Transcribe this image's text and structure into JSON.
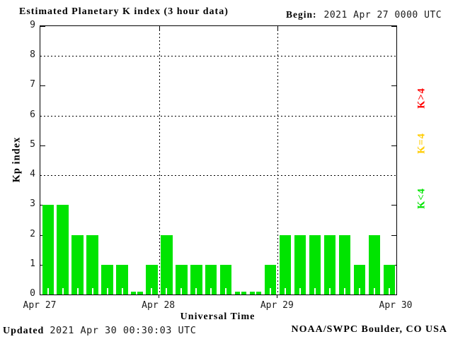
{
  "chart_data": {
    "type": "bar",
    "title": "Estimated Planetary K index (3 hour data)",
    "begin": {
      "label": "Begin:",
      "value": "2021 Apr 27 0000 UTC"
    },
    "xlabel": "Universal Time",
    "ylabel": "Kp index",
    "ylim": [
      0,
      9
    ],
    "yticks": [
      0,
      1,
      2,
      3,
      4,
      5,
      6,
      7,
      8,
      9
    ],
    "grid_y": [
      4,
      6,
      8
    ],
    "categories_days": [
      "Apr 27",
      "Apr 28",
      "Apr 29",
      "Apr 30"
    ],
    "interval_hours": 3,
    "bars_per_day": 8,
    "values": [
      3,
      3,
      2,
      2,
      1,
      1,
      0,
      1,
      2,
      1,
      1,
      1,
      1,
      0,
      0,
      1,
      2,
      2,
      2,
      2,
      2,
      1,
      2,
      1
    ],
    "color_rules": {
      "k_below_4": "#00e400",
      "k_equal_4": "#ffcc00",
      "k_above_4": "#ff0000"
    },
    "legend": [
      {
        "label": "K>4",
        "color": "#ff0000"
      },
      {
        "label": "K=4",
        "color": "#ffcc00"
      },
      {
        "label": "K<4",
        "color": "#00e400"
      }
    ],
    "footer": {
      "updated_label": "Updated",
      "updated_value": "2021 Apr 30 00:30:03 UTC",
      "credit": "NOAA/SWPC Boulder, CO USA"
    },
    "axis_color": "#000000",
    "background": "#ffffff",
    "grid_on": true,
    "legend_position": "right-rotated"
  }
}
